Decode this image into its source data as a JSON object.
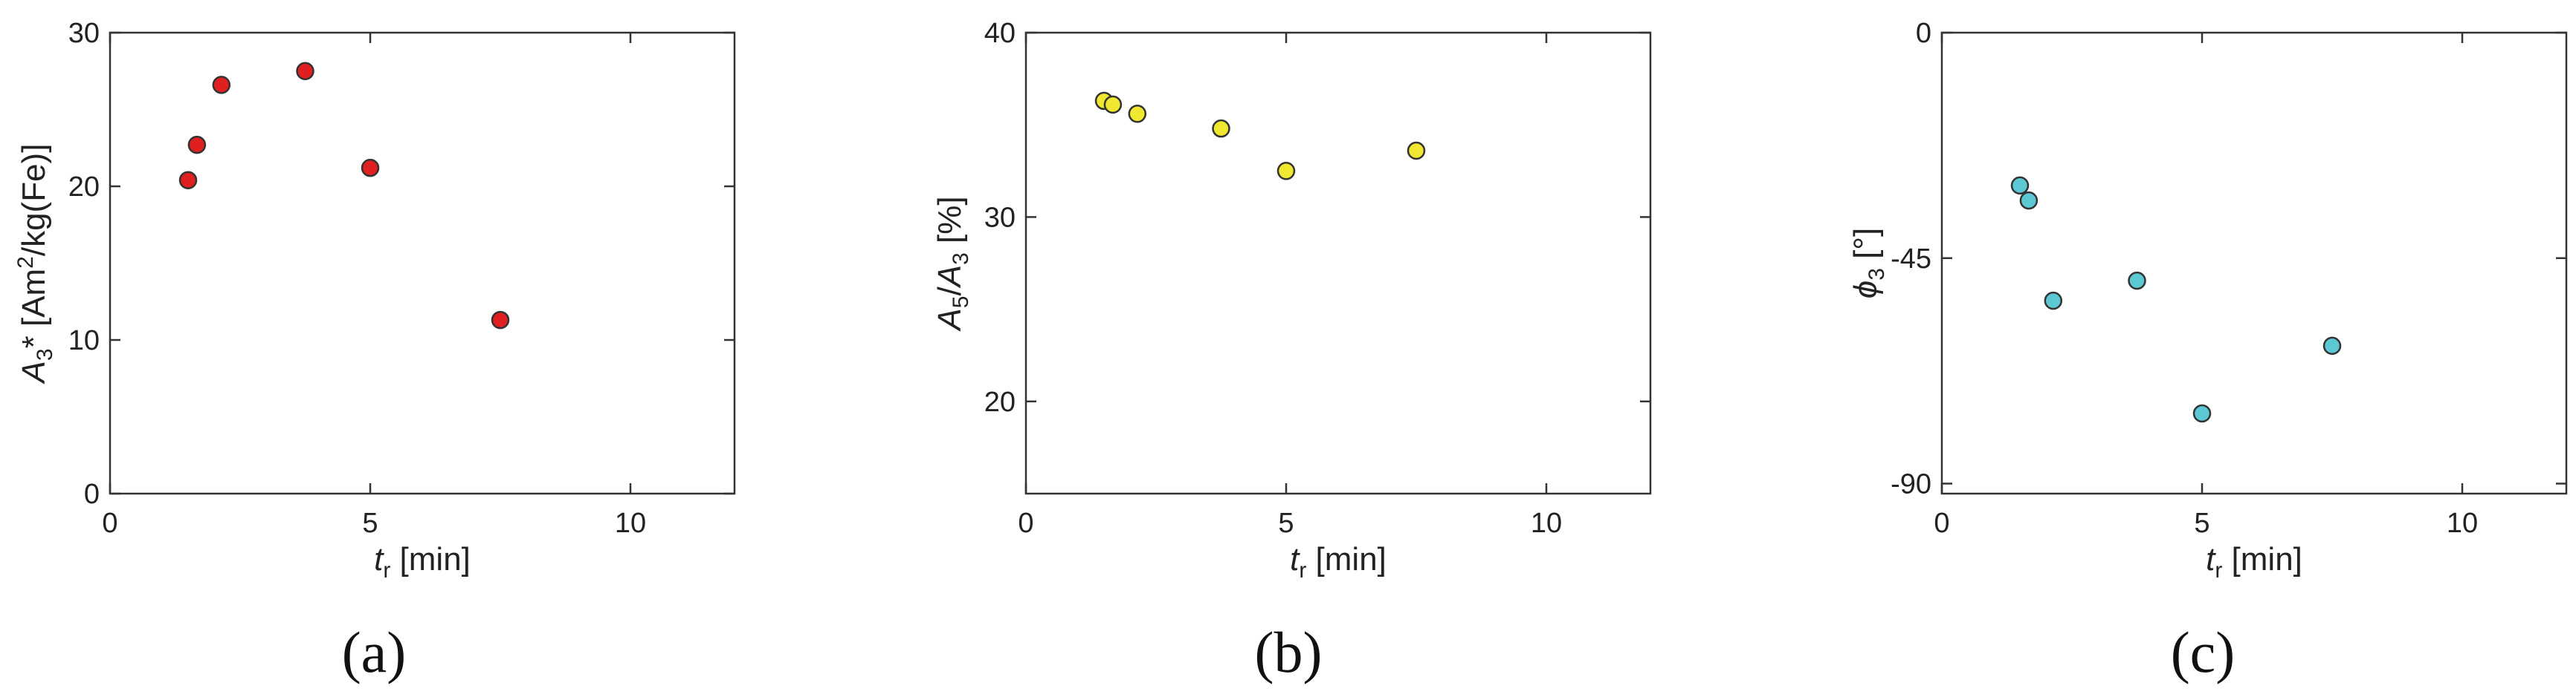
{
  "chart_data": [
    {
      "type": "scatter",
      "panel_label": "(a)",
      "xlabel": {
        "var": "t",
        "sub": "r",
        "unit": " [min]"
      },
      "ylabel": {
        "pre": "A",
        "sub": "3",
        "mid": "* [Am",
        "sup": "2",
        "post": "/kg(Fe)]"
      },
      "xlim": [
        0,
        12
      ],
      "ylim": [
        0,
        30
      ],
      "xticks": [
        0,
        5,
        10
      ],
      "yticks": [
        0,
        10,
        20,
        30
      ],
      "marker_color": "#e02020",
      "x": [
        1.5,
        1.67,
        2.14,
        3.75,
        5.0,
        7.5
      ],
      "y": [
        20.4,
        22.7,
        26.6,
        27.5,
        21.2,
        11.3
      ]
    },
    {
      "type": "scatter",
      "panel_label": "(b)",
      "xlabel": {
        "var": "t",
        "sub": "r",
        "unit": " [min]"
      },
      "ylabel": {
        "pre": "A",
        "sub": "5",
        "mid": "/A",
        "sub2": "3",
        "post": " [%]"
      },
      "xlim": [
        0,
        12
      ],
      "ylim": [
        15,
        40
      ],
      "xticks": [
        0,
        5,
        10
      ],
      "yticks": [
        20,
        30,
        40
      ],
      "marker_color": "#f0e830",
      "x": [
        1.5,
        1.67,
        2.14,
        3.75,
        5.0,
        7.5
      ],
      "y": [
        36.3,
        36.1,
        35.6,
        34.8,
        32.5,
        33.6
      ]
    },
    {
      "type": "scatter",
      "panel_label": "(c)",
      "xlabel": {
        "var": "t",
        "sub": "r",
        "unit": " [min]"
      },
      "ylabel": {
        "pre": "ϕ",
        "sub": "3",
        "post": " [°]"
      },
      "xlim": [
        0,
        12
      ],
      "ylim": [
        -92,
        0
      ],
      "xticks": [
        0,
        5,
        10
      ],
      "yticks": [
        0,
        -45,
        -90
      ],
      "marker_color": "#5cc8d4",
      "x": [
        1.5,
        1.67,
        2.14,
        3.75,
        5.0,
        7.5
      ],
      "y": [
        -30.5,
        -33.5,
        -53.5,
        -49.5,
        -76.0,
        -62.5
      ]
    }
  ]
}
